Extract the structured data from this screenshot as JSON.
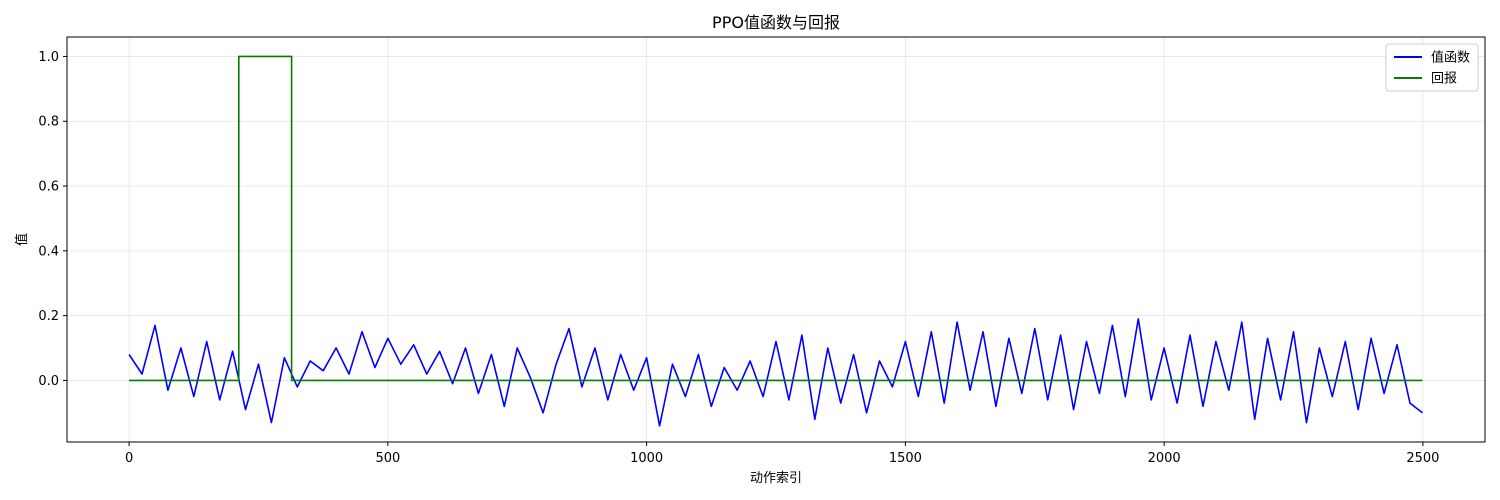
{
  "chart_data": {
    "type": "line",
    "title": "PPO值函数与回报",
    "xlabel": "动作索引",
    "ylabel": "值",
    "xlim": [
      -120,
      2620
    ],
    "ylim": [
      -0.19,
      1.06
    ],
    "xticks": [
      0,
      500,
      1000,
      1500,
      2000,
      2500
    ],
    "yticks": [
      0.0,
      0.2,
      0.4,
      0.6,
      0.8,
      1.0
    ],
    "xtick_labels": [
      "0",
      "500",
      "1000",
      "1500",
      "2000",
      "2500"
    ],
    "ytick_labels": [
      "0.0",
      "0.2",
      "0.4",
      "0.6",
      "0.8",
      "1.0"
    ],
    "grid": true,
    "legend_position": "top-right",
    "series": [
      {
        "name": "值函数",
        "color": "#0000ff",
        "x": [
          0,
          25,
          50,
          75,
          100,
          125,
          150,
          175,
          200,
          225,
          250,
          275,
          300,
          325,
          350,
          375,
          400,
          425,
          450,
          475,
          500,
          525,
          550,
          575,
          600,
          625,
          650,
          675,
          700,
          725,
          750,
          775,
          800,
          825,
          850,
          875,
          900,
          925,
          950,
          975,
          1000,
          1025,
          1050,
          1075,
          1100,
          1125,
          1150,
          1175,
          1200,
          1225,
          1250,
          1275,
          1300,
          1325,
          1350,
          1375,
          1400,
          1425,
          1450,
          1475,
          1500,
          1525,
          1550,
          1575,
          1600,
          1625,
          1650,
          1675,
          1700,
          1725,
          1750,
          1775,
          1800,
          1825,
          1850,
          1875,
          1900,
          1925,
          1950,
          1975,
          2000,
          2025,
          2050,
          2075,
          2100,
          2125,
          2150,
          2175,
          2200,
          2225,
          2250,
          2275,
          2300,
          2325,
          2350,
          2375,
          2400,
          2425,
          2450,
          2475,
          2499
        ],
        "y": [
          0.08,
          0.02,
          0.17,
          -0.03,
          0.1,
          -0.05,
          0.12,
          -0.06,
          0.09,
          -0.09,
          0.05,
          -0.13,
          0.07,
          -0.02,
          0.06,
          0.03,
          0.1,
          0.02,
          0.15,
          0.04,
          0.13,
          0.05,
          0.11,
          0.02,
          0.09,
          -0.01,
          0.1,
          -0.04,
          0.08,
          -0.08,
          0.1,
          0.01,
          -0.1,
          0.05,
          0.16,
          -0.02,
          0.1,
          -0.06,
          0.08,
          -0.03,
          0.07,
          -0.14,
          0.05,
          -0.05,
          0.08,
          -0.08,
          0.04,
          -0.03,
          0.06,
          -0.05,
          0.12,
          -0.06,
          0.14,
          -0.12,
          0.1,
          -0.07,
          0.08,
          -0.1,
          0.06,
          -0.02,
          0.12,
          -0.05,
          0.15,
          -0.07,
          0.18,
          -0.03,
          0.15,
          -0.08,
          0.13,
          -0.04,
          0.16,
          -0.06,
          0.14,
          -0.09,
          0.12,
          -0.04,
          0.17,
          -0.05,
          0.19,
          -0.06,
          0.1,
          -0.07,
          0.14,
          -0.08,
          0.12,
          -0.03,
          0.18,
          -0.12,
          0.13,
          -0.06,
          0.15,
          -0.13,
          0.1,
          -0.05,
          0.12,
          -0.09,
          0.13,
          -0.04,
          0.11,
          -0.07,
          -0.1
        ]
      },
      {
        "name": "回报",
        "color": "#008000",
        "x": [
          0,
          212,
          212,
          314,
          314,
          2499
        ],
        "y": [
          0,
          0,
          1,
          1,
          0,
          0
        ]
      }
    ]
  }
}
